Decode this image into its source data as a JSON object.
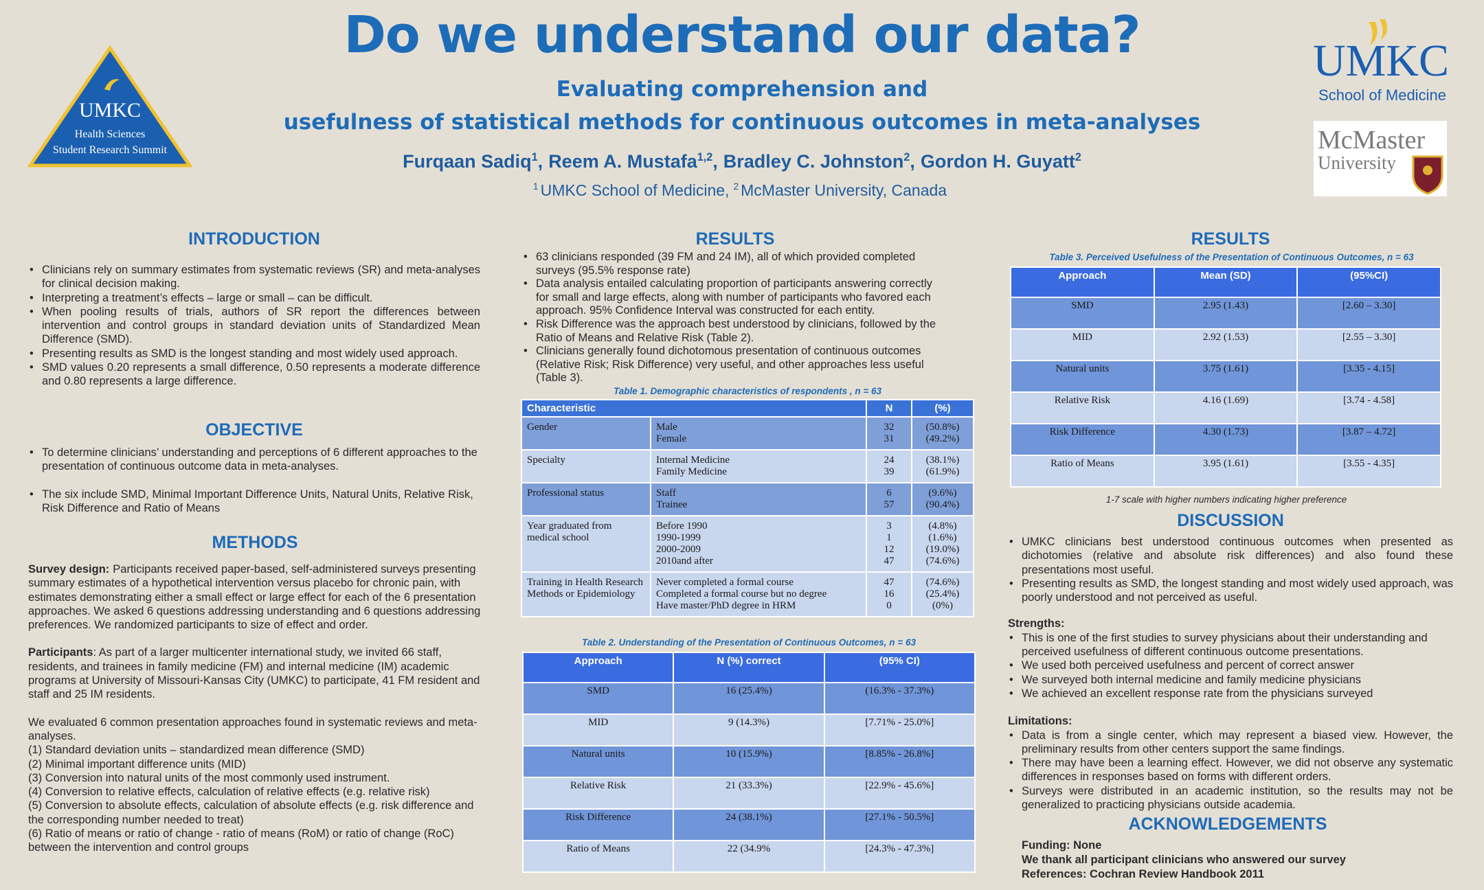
{
  "header": {
    "title": "Do we understand our data?",
    "subtitle": [
      "Evaluating comprehension and",
      "usefulness of statistical methods for continuous outcomes in meta-analyses"
    ],
    "authors": [
      {
        "name": "Furqaan Sadiq",
        "sup": "1",
        "after": ","
      },
      {
        "name": "Reem A. Mustafa",
        "sup": "1,2",
        "after": ","
      },
      {
        "name": "Bradley C. Johnston",
        "sup": "2",
        "after": ","
      },
      {
        "name": "Gordon H. Guyatt",
        "sup": "2"
      }
    ],
    "affiliations": [
      {
        "sup": "1",
        "text": "UMKC School of Medicine,"
      },
      {
        "sup": "2",
        "text": "McMaster University, Canada"
      }
    ]
  },
  "logos": {
    "summit": [
      "UMKC",
      "Health Sciences",
      "Student Research Summit"
    ],
    "umkc": {
      "name": "UMKC",
      "unit": "School of Medicine"
    },
    "mcmaster": [
      "McMaster",
      "University"
    ]
  },
  "introduction": {
    "heading": "INTRODUCTION",
    "items": [
      "Clinicians rely on summary estimates from systematic reviews (SR) and meta-analyses for clinical decision making.",
      "Interpreting a treatment’s effects – large or small – can be difficult.",
      "When pooling results of trials, authors of SR report the differences between intervention and control groups in standard deviation units of Standardized Mean Difference (SMD).",
      "Presenting results as SMD is the longest standing and most widely used approach.",
      "SMD values 0.20 represents a small difference, 0.50 represents a moderate difference and 0.80 represents a large difference."
    ]
  },
  "objective": {
    "heading": "OBJECTIVE",
    "items": [
      "To determine clinicians’ understanding and perceptions of 6 different approaches to the presentation of continuous outcome data in meta-analyses.",
      "The six include SMD, Minimal Important Difference Units, Natural Units, Relative Risk, Risk Difference and Ratio of Means"
    ]
  },
  "methods": {
    "heading": "METHODS",
    "paragraphs": [
      {
        "label": "Survey design:",
        "text": "Participants received paper-based, self-administered surveys presenting summary estimates of a hypothetical intervention versus placebo for chronic pain, with estimates demonstrating either a small effect or large effect for each of the 6 presentation approaches. We asked 6 questions addressing understanding and 6 questions addressing preferences. We randomized participants to size of effect and order."
      },
      {
        "label": "Participants",
        "text": ": As part of a larger multicenter international study, we invited 66 staff, residents, and trainees in family medicine (FM) and internal medicine (IM) academic programs at University of Missouri-Kansas City (UMKC) to participate, 41 FM resident and staff and 25 IM residents."
      }
    ],
    "evaluated": {
      "text": "We evaluated 6 common presentation approaches found in systematic reviews and meta-analyses.",
      "items": [
        "(1) Standard deviation units – standardized mean difference (SMD)",
        "(2) Minimal important difference units (MID)",
        "(3) Conversion into natural units of the most commonly used instrument.",
        "(4) Conversion to relative effects, calculation of relative effects (e.g. relative risk)",
        "(5) Conversion to absolute effects, calculation of absolute effects (e.g. risk difference and the corresponding number needed to treat)",
        "(6) Ratio of means or ratio of change  -  ratio of means (RoM) or ratio of change (RoC) between the intervention and control groups"
      ]
    }
  },
  "results": {
    "heading": "RESULTS",
    "items": [
      "63 clinicians responded (39 FM and 24 IM), all of which provided completed surveys (95.5% response rate)",
      "Data analysis entailed calculating proportion of participants answering correctly for small and large effects, along with number of participants who favored each approach. 95% Confidence Interval was constructed for each entity.",
      "Risk Difference was the approach best understood by clinicians, followed by the Ratio of Means and Relative Risk (Table 2).",
      "Clinicians generally found dichotomous presentation of continuous outcomes (Relative Risk; Risk Difference) very useful, and other approaches less useful (Table 3)."
    ]
  },
  "table1": {
    "caption": "Table 1. Demographic characteristics of respondents , n = 63",
    "header": [
      "Characteristic",
      "N",
      "(%)"
    ],
    "groups": [
      {
        "label": "Gender",
        "rows": [
          [
            "Male",
            32,
            "(50.8%)"
          ],
          [
            "Female",
            31,
            "(49.2%)"
          ]
        ]
      },
      {
        "label": "Specialty",
        "rows": [
          [
            "Internal Medicine",
            24,
            "(38.1%)"
          ],
          [
            "Family Medicine",
            39,
            "(61.9%)"
          ]
        ]
      },
      {
        "label": "Professional status",
        "rows": [
          [
            "Staff",
            6,
            "(9.6%)"
          ],
          [
            "Trainee",
            57,
            "(90.4%)"
          ]
        ]
      },
      {
        "label": "Year graduated from medical school",
        "rows": [
          [
            "Before 1990",
            3,
            "(4.8%)"
          ],
          [
            "1990-1999",
            1,
            "(1.6%)"
          ],
          [
            "2000-2009",
            12,
            "(19.0%)"
          ],
          [
            "2010and after",
            47,
            "(74.6%)"
          ]
        ]
      },
      {
        "label": "Training in Health Research Methods or Epidemiology",
        "rows": [
          [
            "Never completed a formal course",
            47,
            "(74.6%)"
          ],
          [
            "Completed a formal course but no degree",
            16,
            "(25.4%)"
          ],
          [
            "Have master/PhD degree in HRM",
            0,
            "(0%)"
          ]
        ]
      }
    ]
  },
  "table2": {
    "caption": "Table 2. Understanding of the Presentation of Continuous Outcomes, n = 63",
    "header": [
      "Approach",
      "N (%) correct",
      "(95% CI)"
    ],
    "rows": [
      [
        "SMD",
        "16 (25.4%)",
        "(16.3% - 37.3%)"
      ],
      [
        "MID",
        "9 (14.3%)",
        "[7.71% - 25.0%]"
      ],
      [
        "Natural units",
        "10 (15.9%)",
        "[8.85% - 26.8%]"
      ],
      [
        "Relative Risk",
        "21 (33.3%)",
        "[22.9% - 45.6%]"
      ],
      [
        "Risk Difference",
        "24 (38.1%)",
        "[27.1% - 50.5%]"
      ],
      [
        "Ratio of Means",
        "22 (34.9%",
        "[24.3% - 47.3%]"
      ]
    ]
  },
  "results2": {
    "heading": "RESULTS"
  },
  "table3": {
    "caption": "Table 3. Perceived Usefulness of the Presentation of Continuous Outcomes, n = 63",
    "header": [
      "Approach",
      "Mean (SD)",
      "(95%CI)"
    ],
    "rows": [
      [
        "SMD",
        "2.95 (1.43)",
        "[2.60 – 3.30]"
      ],
      [
        "MID",
        "2.92 (1.53)",
        "[2.55 – 3.30]"
      ],
      [
        "Natural units",
        "3.75 (1.61)",
        "[3.35 - 4.15]"
      ],
      [
        "Relative Risk",
        "4.16 (1.69)",
        "[3.74 - 4.58]"
      ],
      [
        "Risk Difference",
        "4.30 (1.73)",
        "[3.87 – 4.72]"
      ],
      [
        "Ratio of Means",
        "3.95 (1.61)",
        "[3.55 - 4.35]"
      ]
    ],
    "note": "1-7 scale with higher numbers indicating higher preference"
  },
  "discussion": {
    "heading": "DISCUSSION",
    "items": [
      "UMKC clinicians best understood continuous outcomes when presented as dichotomies (relative and absolute risk differences) and also found these presentations most useful.",
      "Presenting results as SMD, the longest standing and most widely used approach, was poorly understood and not perceived as useful."
    ]
  },
  "strengths": {
    "heading": "Strengths:",
    "items": [
      "This is one of the first studies to survey physicians about their understanding and perceived usefulness of different continuous outcome presentations.",
      "We used both perceived usefulness and percent of correct answer",
      "We surveyed both internal medicine and family medicine physicians",
      "We achieved an excellent response rate from the physicians surveyed"
    ]
  },
  "limitations": {
    "heading": "Limitations:",
    "items": [
      "Data is from a single center, which may represent a biased view. However, the preliminary results from other centers support the same findings.",
      "There may have been a learning effect. However, we did not observe any systematic differences in responses based on forms with different orders.",
      "Surveys were distributed in an academic institution, so the results may not be generalized to practicing physicians outside academia."
    ]
  },
  "acknowledgements": {
    "heading": "ACKNOWLEDGEMENTS",
    "lines": [
      "Funding: None",
      "We thank all participant clinicians who answered our survey",
      "References: Cochran Review Handbook 2011"
    ]
  }
}
